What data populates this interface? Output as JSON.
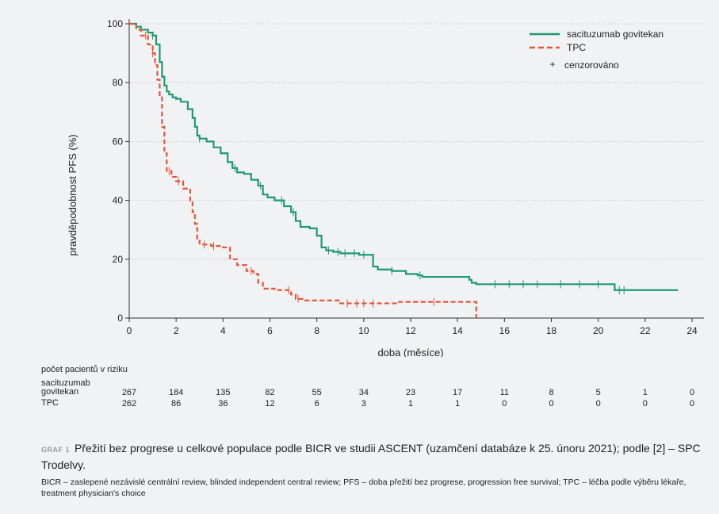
{
  "chart_data": {
    "type": "line",
    "xlabel": "doba (měsíce)",
    "ylabel": "pravděpodobnost PFS (%)",
    "xlim": [
      0,
      24
    ],
    "ylim": [
      0,
      100
    ],
    "xticks": [
      0,
      2,
      4,
      6,
      8,
      10,
      12,
      14,
      16,
      18,
      20,
      22,
      24
    ],
    "yticks": [
      0,
      20,
      40,
      60,
      80,
      100
    ],
    "grid": "horizontal dotted",
    "legend_position": "top-right",
    "series": [
      {
        "name": "sacituzumab govitekan",
        "color": "#1e9a72",
        "dash": "solid",
        "x": [
          0,
          0.3,
          0.5,
          0.8,
          1.0,
          1.15,
          1.3,
          1.4,
          1.5,
          1.6,
          1.7,
          1.85,
          2.0,
          2.2,
          2.5,
          2.7,
          2.8,
          2.9,
          3.0,
          3.3,
          3.6,
          3.9,
          4.2,
          4.4,
          4.6,
          4.9,
          5.2,
          5.5,
          5.7,
          5.9,
          6.2,
          6.6,
          6.9,
          7.1,
          7.3,
          7.7,
          8.0,
          8.2,
          8.4,
          8.7,
          9.0,
          9.8,
          10.4,
          10.6,
          11.2,
          11.8,
          12.3,
          12.5,
          13.5,
          14.5,
          14.6,
          14.8,
          15.5,
          17.0,
          19.0,
          20.7,
          22.0,
          23.4
        ],
        "y": [
          100,
          99,
          98,
          97,
          96,
          93,
          87,
          82,
          79,
          77,
          76,
          75,
          74.5,
          73.5,
          71,
          68,
          65,
          62,
          61,
          60,
          58,
          56,
          53,
          51,
          49.5,
          49,
          47,
          45,
          42,
          41,
          40,
          38,
          36,
          33,
          31,
          30.5,
          28,
          24,
          23,
          22.5,
          22,
          21.5,
          17.5,
          16.5,
          16,
          15,
          14.5,
          14,
          14,
          13,
          12,
          11.5,
          11.5,
          11.5,
          11.5,
          9.5,
          9.5,
          9.5
        ],
        "censored_x": [
          1.0,
          3.0,
          4.5,
          5.6,
          6.5,
          7.0,
          8.5,
          8.9,
          9.2,
          9.6,
          10.0,
          11.2,
          12.4,
          15.6,
          16.2,
          16.8,
          17.4,
          18.4,
          19.2,
          20.0,
          20.9,
          21.1
        ]
      },
      {
        "name": "TPC",
        "color": "#e8533a",
        "dash": "dashed",
        "x": [
          0,
          0.3,
          0.5,
          0.8,
          1.0,
          1.1,
          1.2,
          1.3,
          1.4,
          1.5,
          1.6,
          1.8,
          2.0,
          2.3,
          2.6,
          2.7,
          2.8,
          2.9,
          3.0,
          3.5,
          4.0,
          4.3,
          4.6,
          5.0,
          5.3,
          5.5,
          5.7,
          6.2,
          6.9,
          7.1,
          7.5,
          9.0,
          11.5,
          14.7,
          14.8
        ],
        "y": [
          100,
          98,
          96,
          93,
          90,
          86,
          81,
          75,
          65,
          56,
          50,
          48,
          46.5,
          44,
          40,
          36,
          32,
          27,
          25,
          24.5,
          24,
          20,
          18,
          16,
          15,
          12,
          10,
          9.5,
          8,
          6.5,
          6,
          5,
          5.5,
          5.5,
          0
        ],
        "censored_x": [
          0.7,
          1.0,
          1.7,
          2.1,
          3.2,
          3.6,
          5.2,
          6.8,
          7.2,
          9.3,
          9.7,
          10.0,
          10.4,
          13.0
        ]
      }
    ],
    "legend": {
      "entries": [
        "sacituzumab govitekan",
        "TPC"
      ],
      "censored_marker": "+",
      "censored_label": "cenzorováno"
    }
  },
  "risk_table": {
    "title": "počet pacientů v riziku",
    "rows": [
      {
        "label_line1": "sacituzumab",
        "label_line2": "govitekan",
        "values": [
          "267",
          "184",
          "135",
          "82",
          "55",
          "34",
          "23",
          "17",
          "11",
          "8",
          "5",
          "1",
          "0"
        ]
      },
      {
        "label_line1": "",
        "label_line2": "TPC",
        "values": [
          "262",
          "86",
          "36",
          "12",
          "6",
          "3",
          "1",
          "1",
          "0",
          "0",
          "0",
          "0",
          "0"
        ]
      }
    ]
  },
  "caption": {
    "label": "GRAF 1",
    "text": "Přežití bez progrese u celkové populace podle BICR ve studii ASCENT (uzamčení databáze k 25. únoru 2021); podle [2] – SPC Trodelvy."
  },
  "footnote": "BICR – zaslepené nezávislé centrální review, blinded independent central review; PFS – doba přežití bez progrese, progression free survival; TPC – léčba podle výběru lékaře, treatment physician's choice"
}
